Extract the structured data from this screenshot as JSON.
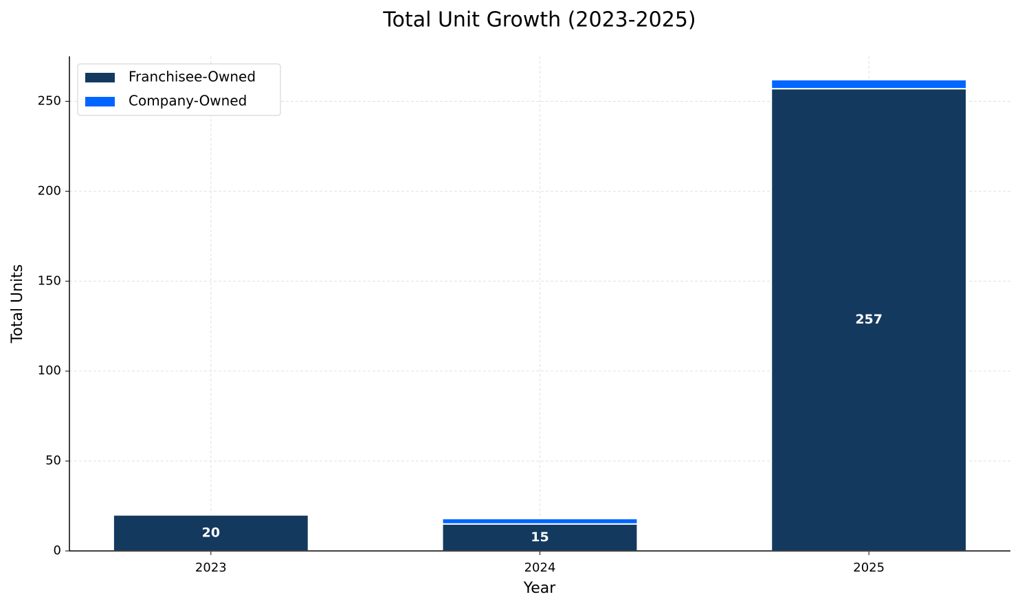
{
  "chart_data": {
    "type": "stacked_bar",
    "title": "Total Unit Growth (2023-2025)",
    "x_label": "Year",
    "y_label": "Total Units",
    "categories": [
      "2023",
      "2024",
      "2025"
    ],
    "series": [
      {
        "name": "Franchisee-Owned",
        "color": "#14395f",
        "values": [
          20,
          15,
          257
        ]
      },
      {
        "name": "Company-Owned",
        "color": "#0066ff",
        "values": [
          0,
          3,
          5
        ]
      }
    ],
    "ylim": [
      0,
      275
    ],
    "yticks": [
      0,
      50,
      100,
      150,
      200,
      250
    ],
    "grid": true,
    "legend": "upper-left"
  }
}
